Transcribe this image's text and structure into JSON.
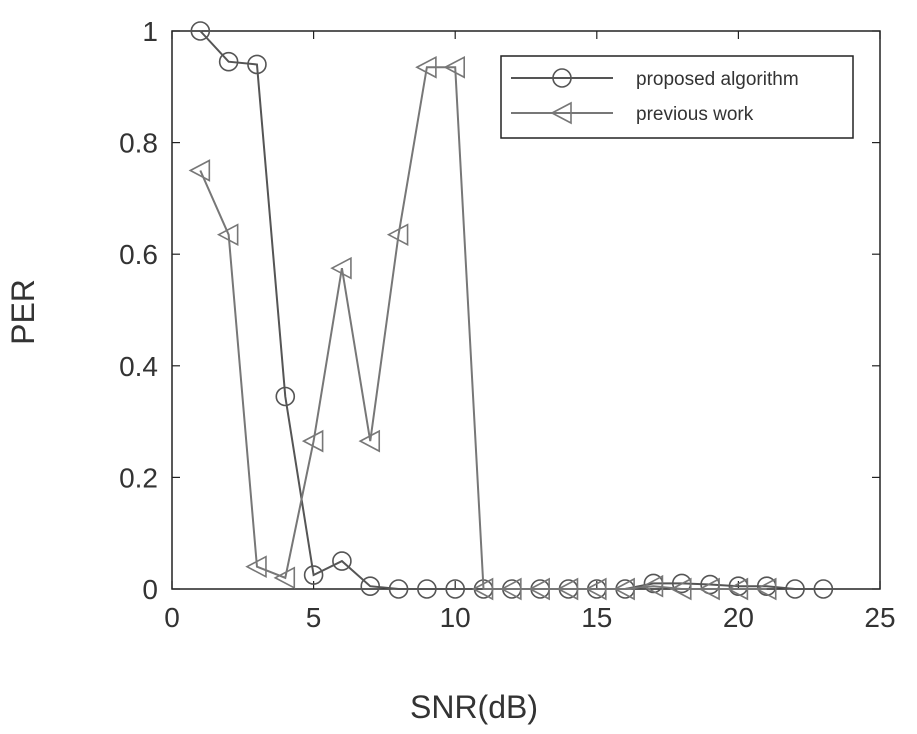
{
  "chart_data": {
    "type": "line",
    "xlabel": "SNR(dB)",
    "ylabel": "PER",
    "xlim": [
      0,
      25
    ],
    "ylim": [
      0,
      1
    ],
    "xticks": [
      "0",
      "5",
      "10",
      "15",
      "20",
      "25"
    ],
    "yticks": [
      "0",
      "0.2",
      "0.4",
      "0.6",
      "0.8",
      "1"
    ],
    "grid": false,
    "legend_position": "top-right",
    "series": [
      {
        "name": "proposed algorithm",
        "marker": "circle",
        "color": "#555555",
        "x": [
          1,
          2,
          3,
          4,
          5,
          6,
          7,
          8,
          9,
          10,
          11,
          12,
          13,
          14,
          15,
          16,
          17,
          18,
          19,
          20,
          21,
          22,
          23
        ],
        "y": [
          1.0,
          0.945,
          0.94,
          0.345,
          0.025,
          0.05,
          0.005,
          0,
          0,
          0,
          0,
          0,
          0,
          0,
          0,
          0,
          0.01,
          0.01,
          0.008,
          0.005,
          0.005,
          0,
          0
        ]
      },
      {
        "name": "previous work",
        "marker": "triangle-left",
        "color": "#777777",
        "x": [
          1,
          2,
          3,
          4,
          5,
          6,
          7,
          8,
          9,
          10,
          11,
          12,
          13,
          14,
          15,
          16,
          17,
          18,
          19,
          20,
          21
        ],
        "y": [
          0.75,
          0.635,
          0.04,
          0.02,
          0.265,
          0.575,
          0.265,
          0.635,
          0.935,
          0.935,
          0,
          0,
          0,
          0,
          0,
          0,
          0.005,
          0,
          0,
          0,
          0
        ]
      }
    ]
  }
}
